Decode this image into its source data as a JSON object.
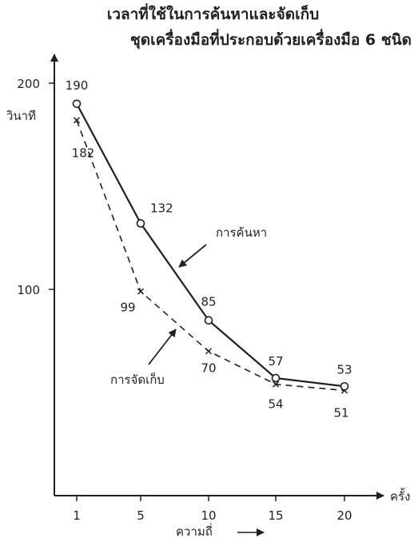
{
  "title_line1": "เวลาที่ใช้ในการค้นหาและจัดเก็บ",
  "title_line2": "ชุดเครื่องมือที่ประกอบด้วยเครื่องมือ 6 ชนิด",
  "colors": {
    "ink": "#231f20",
    "background": "#ffffff"
  },
  "chart_data": {
    "type": "line",
    "title": "เวลาที่ใช้ในการค้นหาและจัดเก็บ ชุดเครื่องมือที่ประกอบด้วยเครื่องมือ 6 ชนิด",
    "xlabel": "ความถี่",
    "ylabel": "วินาที",
    "x_unit": "ครั้ง",
    "x_ticks": [
      1,
      5,
      10,
      15,
      20
    ],
    "y_ticks": [
      100,
      200
    ],
    "ylim": [
      0,
      210
    ],
    "grid": false,
    "series": [
      {
        "name": "การค้นหา",
        "style": "solid",
        "marker": "circle",
        "x": [
          1,
          5,
          10,
          15,
          20
        ],
        "values": [
          190,
          132,
          85,
          57,
          53
        ]
      },
      {
        "name": "การจัดเก็บ",
        "style": "dashed",
        "marker": "x",
        "x": [
          1,
          5,
          10,
          15,
          20
        ],
        "values": [
          182,
          99,
          70,
          54,
          51
        ]
      }
    ]
  }
}
